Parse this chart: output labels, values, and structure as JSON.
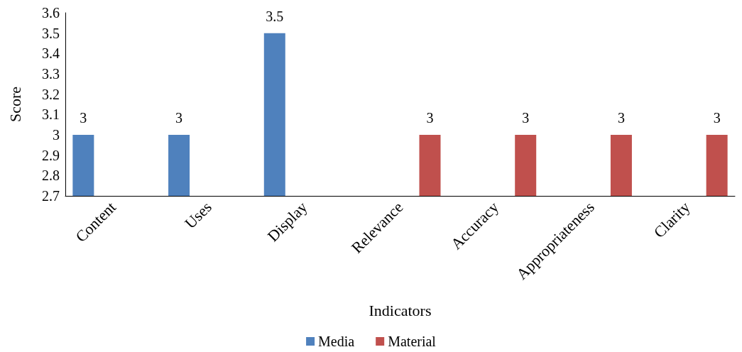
{
  "chart_data": {
    "type": "bar",
    "xlabel": "Indicators",
    "ylabel": "Score",
    "categories": [
      "Content",
      "Uses",
      "Display",
      "Relevance",
      "Accuracy",
      "Appropriateness",
      "Clarity"
    ],
    "series": [
      {
        "name": "Media",
        "color": "#4f81bd",
        "values": [
          3,
          3,
          3.5,
          null,
          null,
          null,
          null
        ]
      },
      {
        "name": "Material",
        "color": "#c0504d",
        "values": [
          null,
          null,
          null,
          3,
          3,
          3,
          3
        ]
      }
    ],
    "ylim": [
      2.7,
      3.6
    ],
    "yticks": [
      2.7,
      2.8,
      2.9,
      3,
      3.1,
      3.2,
      3.3,
      3.4,
      3.5,
      3.6
    ],
    "data_labels": true,
    "grid": false,
    "legend": "bottom"
  }
}
